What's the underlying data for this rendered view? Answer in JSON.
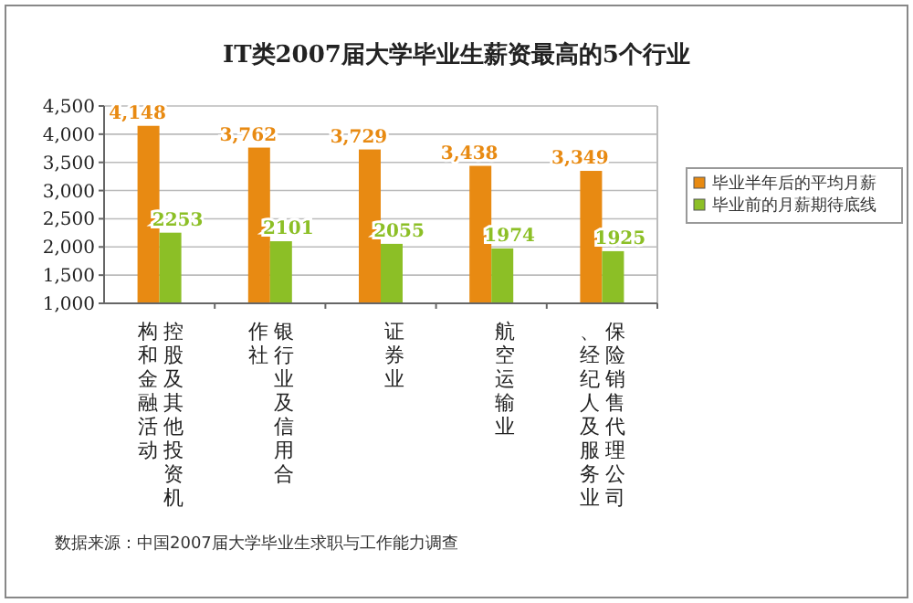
{
  "chart_data": {
    "type": "bar",
    "title": "IT类2007届大学毕业生薪资最高的5个行业",
    "categories": [
      "控股及其他投资机构和金融活动",
      "银行业及信用合作社",
      "证券业",
      "航空运输业",
      "保险销售代理公司、经纪人及服务业"
    ],
    "series": [
      {
        "name": "毕业半年后的平均月薪",
        "color": "#e88a12",
        "values": [
          4148,
          3762,
          3729,
          3438,
          3349
        ],
        "value_labels": [
          "4,148",
          "3,762",
          "3,729",
          "3,438",
          "3,349"
        ]
      },
      {
        "name": "毕业前的月薪期待底线",
        "color": "#8cbf26",
        "values": [
          2253,
          2101,
          2055,
          1974,
          1925
        ],
        "value_labels": [
          "2253",
          "2101",
          "2055",
          "1974",
          "1925"
        ]
      }
    ],
    "ylim": [
      1000,
      4500
    ],
    "yticks": [
      {
        "value": 1000,
        "label": "1,000"
      },
      {
        "value": 1500,
        "label": "1,500"
      },
      {
        "value": 2000,
        "label": "2,000"
      },
      {
        "value": 2500,
        "label": "2,500"
      },
      {
        "value": 3000,
        "label": "3,000"
      },
      {
        "value": 3500,
        "label": "3,500"
      },
      {
        "value": 4000,
        "label": "4,000"
      },
      {
        "value": 4500,
        "label": "4,500"
      }
    ],
    "grid": "y",
    "legend": "right",
    "annotations": [
      "数据来源：中国2007届大学毕业生求职与工作能力调查"
    ]
  }
}
